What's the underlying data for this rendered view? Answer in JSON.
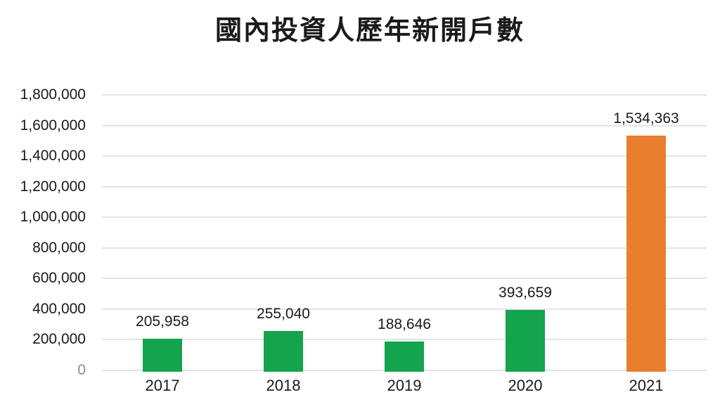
{
  "chart_data": {
    "type": "bar",
    "title": "國內投資人歷年新開戶數",
    "categories": [
      "2017",
      "2018",
      "2019",
      "2020",
      "2021"
    ],
    "values": [
      205958,
      255040,
      188646,
      393659,
      1534363
    ],
    "value_labels": [
      "205,958",
      "255,040",
      "188,646",
      "393,659",
      "1,534,363"
    ],
    "bar_colors": [
      "#14A44D",
      "#14A44D",
      "#14A44D",
      "#14A44D",
      "#E87E2E"
    ],
    "y_ticks": [
      "1,800,000",
      "1,600,000",
      "1,400,000",
      "1,200,000",
      "1,000,000",
      "800,000",
      "600,000",
      "400,000",
      "200,000",
      "0"
    ],
    "y_tick_values": [
      1800000,
      1600000,
      1400000,
      1200000,
      1000000,
      800000,
      600000,
      400000,
      200000,
      0
    ],
    "ylim": [
      0,
      1800000
    ],
    "xlabel": "",
    "ylabel": "",
    "grid": true,
    "legend_position": "none",
    "colors": {
      "bar_green": "#14A44D",
      "bar_orange": "#E87E2E",
      "gridline": "#e4e4e4",
      "text": "#1a1a1a",
      "zero_tick_text": "#8c8c8c",
      "background": "#ffffff"
    }
  }
}
